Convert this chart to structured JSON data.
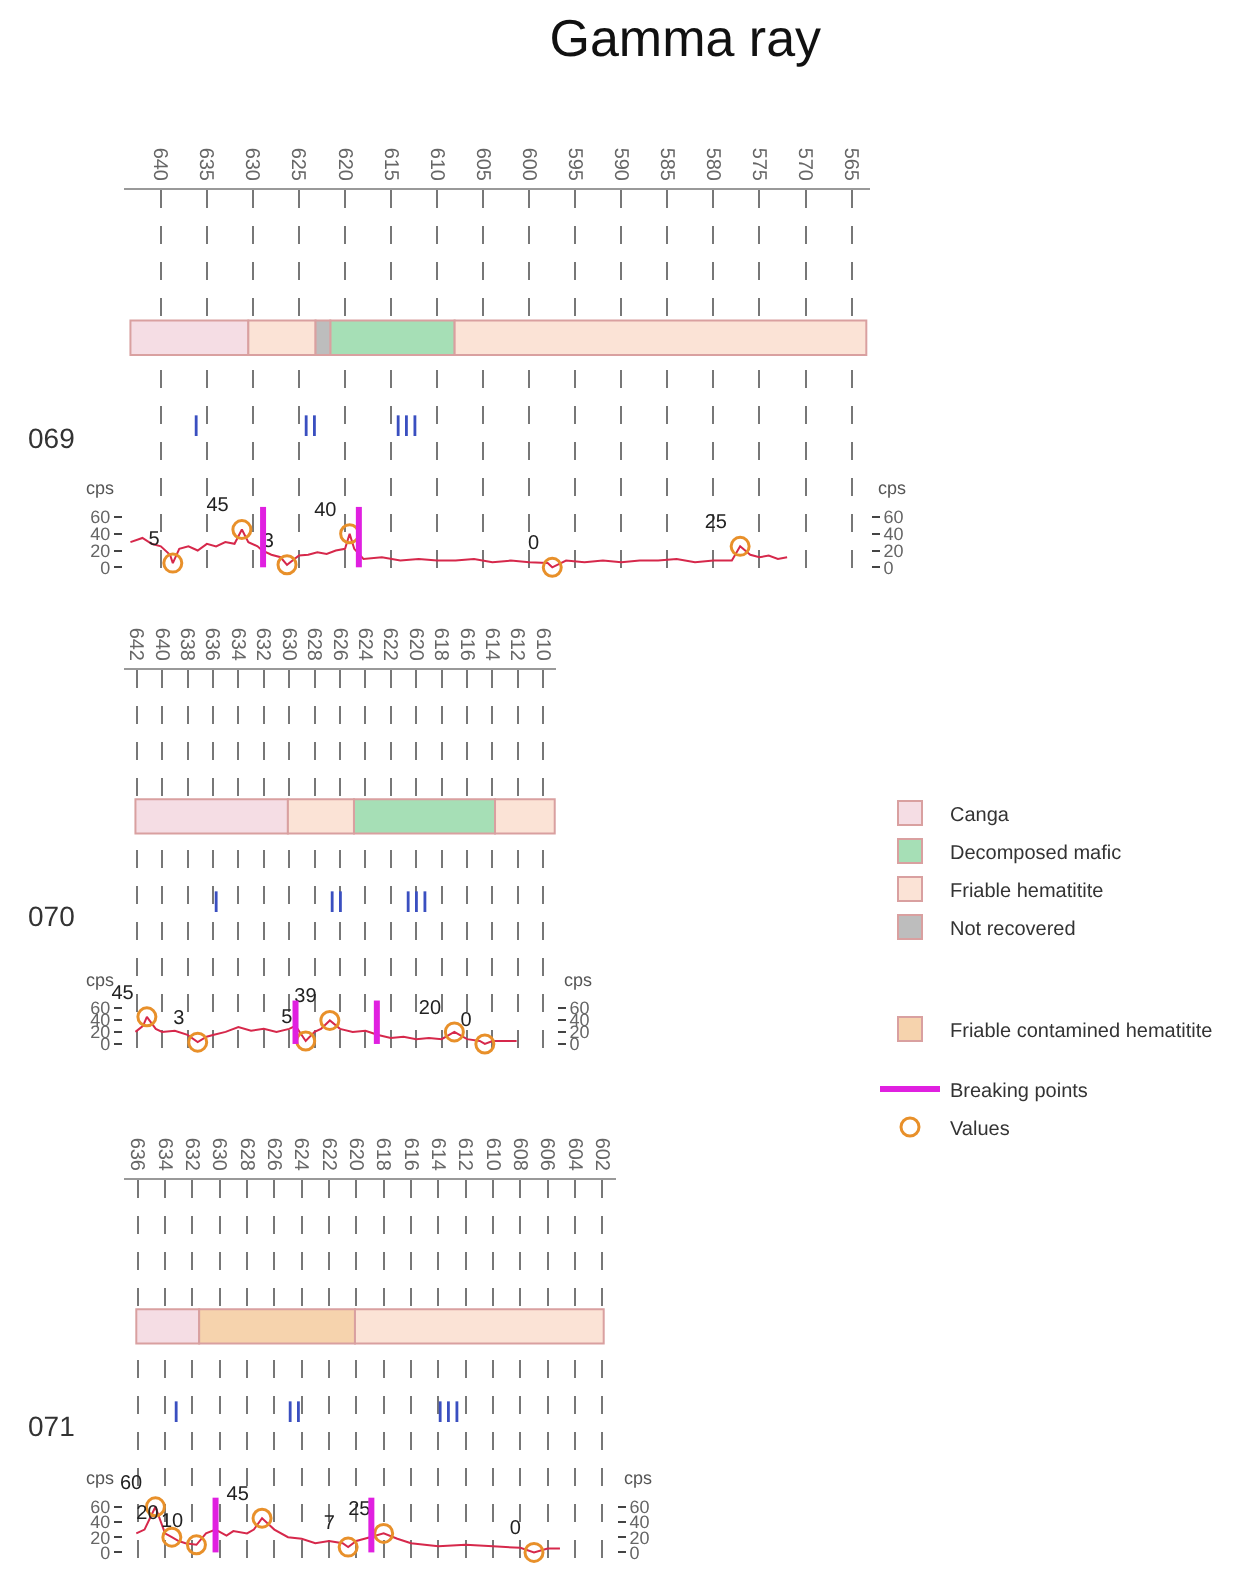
{
  "chart_data": [
    {
      "type": "line",
      "title": "Gamma ray",
      "ylabel": "cps",
      "y2label": "cps",
      "xlim": [
        644,
        563
      ],
      "xticks": [
        640,
        635,
        630,
        625,
        620,
        615,
        610,
        605,
        600,
        595,
        590,
        585,
        580,
        575,
        570,
        565
      ],
      "ylim": [
        -8,
        450
      ],
      "yticks": [
        0,
        20,
        40,
        60
      ],
      "y2lim": [
        -8,
        450
      ],
      "y2ticks": [
        0,
        20,
        40,
        60
      ],
      "grid": "x",
      "legend": "right",
      "marker": "none",
      "line_style": "solid",
      "annotations": [
        "069",
        "I",
        "II",
        "III"
      ],
      "series": [
        {
          "color": "#d6284b",
          "x": [
            643.3,
            642,
            641,
            640,
            639,
            638.7,
            638,
            637,
            636,
            635,
            634,
            633,
            632,
            631.2,
            630.5,
            629.5,
            629,
            628,
            627,
            626.3,
            625,
            624,
            623,
            622,
            621,
            620,
            619.5,
            619,
            618,
            616,
            614,
            612,
            610,
            608,
            606,
            604,
            602,
            600,
            598,
            597.5,
            596,
            594,
            592,
            590,
            588,
            586,
            584,
            582,
            580,
            578,
            577.1,
            576,
            575,
            574,
            573,
            572
          ],
          "values": [
            30,
            35,
            28,
            25,
            15,
            5,
            22,
            25,
            20,
            28,
            25,
            30,
            28,
            45,
            30,
            25,
            20,
            15,
            12,
            3,
            14,
            15,
            18,
            16,
            20,
            22,
            40,
            22,
            10,
            12,
            8,
            10,
            8,
            8,
            10,
            6,
            8,
            6,
            5,
            0,
            8,
            6,
            8,
            6,
            8,
            8,
            10,
            6,
            8,
            8,
            25,
            15,
            12,
            14,
            10,
            12
          ]
        },
        {
          "type": "scatter",
          "color": "#e8902a",
          "marker": "circle",
          "data_labels": true,
          "x": [
            638.7,
            631.2,
            626.3,
            619.5,
            597.5,
            577.1
          ],
          "values": [
            5,
            45,
            3,
            40,
            0,
            25
          ]
        }
      ],
      "ref_lines": [
        {
          "axis": "x",
          "value": 628.9,
          "color": "#e020e0"
        },
        {
          "axis": "x",
          "value": 618.5,
          "color": "#e020e0"
        }
      ],
      "bands": [
        {
          "axis": "x",
          "from": 643.3,
          "to": 630.5,
          "label": "Canga",
          "color": "#f5dde4"
        },
        {
          "axis": "x",
          "from": 621.6,
          "to": 608.1,
          "label": "Decomposed mafic",
          "color": "#a6dfb6"
        },
        {
          "axis": "x",
          "from": 630.5,
          "to": 623.2,
          "label": "Friable hematitite",
          "color": "#fbe3d6"
        },
        {
          "axis": "x",
          "from": 608.1,
          "to": 563.4,
          "color": "#fbe3d6"
        },
        {
          "axis": "x",
          "from": 623.2,
          "to": 621.6,
          "label": "Not recovered",
          "color": "#bdbdbd"
        }
      ]
    },
    {
      "type": "line",
      "ylabel": "cps",
      "y2label": "cps",
      "xlim": [
        643,
        609
      ],
      "xticks": [
        642,
        640,
        638,
        636,
        634,
        632,
        630,
        628,
        626,
        624,
        622,
        620,
        618,
        616,
        614,
        612,
        610
      ],
      "ylim": [
        -10,
        620
      ],
      "yticks": [
        0,
        20,
        40,
        60
      ],
      "y2lim": [
        -10,
        620
      ],
      "y2ticks": [
        0,
        20,
        40,
        60
      ],
      "grid": "x",
      "legend": "right",
      "marker": "none",
      "line_style": "solid",
      "annotations": [
        "070",
        "I",
        "II",
        "III"
      ],
      "series": [
        {
          "color": "#d6284b",
          "x": [
            642.1,
            641.5,
            641.2,
            640.5,
            640,
            639,
            638,
            637.2,
            636.5,
            636,
            635,
            634,
            633,
            632,
            631,
            630,
            629.5,
            628.7,
            628,
            627.5,
            626.8,
            626,
            625,
            624,
            623,
            622,
            621,
            620,
            619,
            618,
            617,
            616,
            615,
            614.6,
            614,
            613,
            612.1
          ],
          "values": [
            20,
            30,
            45,
            25,
            20,
            22,
            15,
            3,
            12,
            15,
            20,
            28,
            22,
            25,
            20,
            25,
            30,
            5,
            20,
            25,
            39,
            25,
            20,
            22,
            15,
            10,
            12,
            8,
            10,
            8,
            20,
            8,
            5,
            0,
            5,
            5,
            5
          ]
        },
        {
          "type": "scatter",
          "name": "Values",
          "color": "#e8902a",
          "marker": "circle",
          "data_labels": true,
          "x": [
            641.2,
            637.2,
            628.7,
            626.8,
            617,
            614.6
          ],
          "values": [
            45,
            3,
            5,
            39,
            20,
            0
          ]
        }
      ],
      "ref_lines": [
        {
          "axis": "x",
          "value": 629.5,
          "label": "Breaking points",
          "color": "#e020e0"
        },
        {
          "axis": "x",
          "value": 623.1,
          "color": "#e020e0"
        }
      ],
      "bands": [
        {
          "axis": "x",
          "from": 642.1,
          "to": 630.1,
          "color": "#f5dde4"
        },
        {
          "axis": "x",
          "from": 630.1,
          "to": 624.9,
          "color": "#fbe3d6"
        },
        {
          "axis": "x",
          "from": 624.9,
          "to": 613.8,
          "color": "#a6dfb6"
        },
        {
          "axis": "x",
          "from": 613.8,
          "to": 609.1,
          "color": "#fbe3d6"
        }
      ]
    },
    {
      "type": "line",
      "ylabel": "cps",
      "y2label": "cps",
      "xlim": [
        637,
        601
      ],
      "xticks": [
        636,
        634,
        632,
        630,
        628,
        626,
        624,
        622,
        620,
        618,
        616,
        614,
        612,
        610,
        608,
        606,
        604,
        602
      ],
      "ylim": [
        -10,
        490
      ],
      "yticks": [
        0,
        20,
        40,
        60
      ],
      "y2lim": [
        -10,
        490
      ],
      "y2ticks": [
        0,
        20,
        40,
        60
      ],
      "grid": "x",
      "legend": "right",
      "marker": "none",
      "line_style": "solid",
      "annotations": [
        "071",
        "I",
        "II",
        "III"
      ],
      "series": [
        {
          "color": "#d6284b",
          "x": [
            636.1,
            635.5,
            634.7,
            634,
            633.5,
            633,
            632.5,
            631.7,
            631,
            630.3,
            629.5,
            629,
            628,
            627.5,
            626.9,
            626,
            625,
            624,
            623,
            622,
            621,
            620.6,
            620,
            619,
            618,
            617,
            616,
            614,
            612,
            610,
            608,
            607,
            606,
            605.1
          ],
          "values": [
            25,
            30,
            60,
            25,
            20,
            15,
            12,
            10,
            25,
            30,
            22,
            28,
            25,
            30,
            45,
            30,
            20,
            18,
            12,
            15,
            12,
            7,
            15,
            20,
            25,
            18,
            12,
            8,
            10,
            8,
            6,
            0,
            5,
            5
          ]
        },
        {
          "type": "scatter",
          "color": "#e8902a",
          "marker": "circle",
          "data_labels": true,
          "x": [
            634.7,
            633.5,
            631.7,
            626.9,
            620.6,
            618,
            607
          ],
          "values": [
            60,
            20,
            10,
            45,
            7,
            25,
            0
          ]
        }
      ],
      "ref_lines": [
        {
          "axis": "x",
          "value": 630.3,
          "color": "#e020e0"
        },
        {
          "axis": "x",
          "value": 618.9,
          "color": "#e020e0"
        }
      ],
      "bands": [
        {
          "axis": "x",
          "from": 636.1,
          "to": 631.5,
          "color": "#f5dde4"
        },
        {
          "axis": "x",
          "from": 631.5,
          "to": 620.1,
          "label": "Friable contamined hematitite",
          "color": "#f6d3ad"
        },
        {
          "axis": "x",
          "from": 620.1,
          "to": 601.9,
          "color": "#fbe3d6"
        }
      ]
    }
  ]
}
